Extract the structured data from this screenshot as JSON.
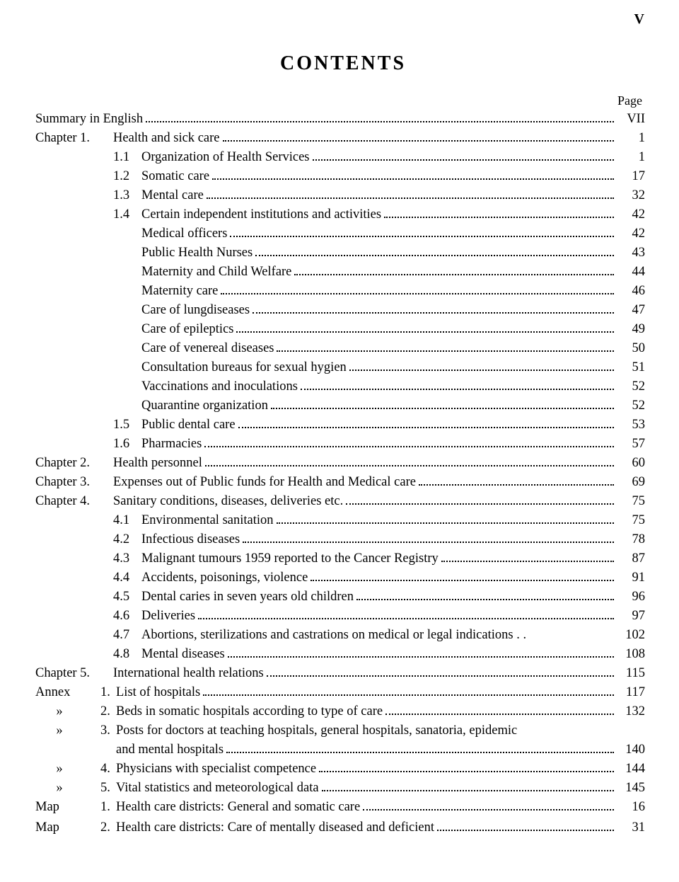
{
  "page_number_top": "V",
  "title": "CONTENTS",
  "page_heading": "Page",
  "rows": [
    {
      "type": "row",
      "prefix": "",
      "prefix_cls": "",
      "indent": "indent-0",
      "label": "Summary in English",
      "page": "VII",
      "dots": true
    },
    {
      "type": "row",
      "prefix": "Chapter 1.",
      "prefix_cls": "pfx-chapter",
      "indent": "indent-0",
      "label": "Health and sick care",
      "page": "1",
      "dots": true
    },
    {
      "type": "row",
      "prefix": "1.1",
      "prefix_cls": "pfx-num",
      "indent": "indent-1",
      "label": "Organization of Health Services",
      "page": "1",
      "dots": true
    },
    {
      "type": "row",
      "prefix": "1.2",
      "prefix_cls": "pfx-num",
      "indent": "indent-1",
      "label": "Somatic care",
      "page": "17",
      "dots": true
    },
    {
      "type": "row",
      "prefix": "1.3",
      "prefix_cls": "pfx-num",
      "indent": "indent-1",
      "label": "Mental care",
      "page": "32",
      "dots": true
    },
    {
      "type": "row",
      "prefix": "1.4",
      "prefix_cls": "pfx-num",
      "indent": "indent-1",
      "label": "Certain independent institutions and activities",
      "page": "42",
      "dots": true
    },
    {
      "type": "row",
      "prefix": "",
      "prefix_cls": "",
      "indent": "indent-2",
      "label": "Medical officers",
      "page": "42",
      "dots": true
    },
    {
      "type": "row",
      "prefix": "",
      "prefix_cls": "",
      "indent": "indent-2",
      "label": "Public Health Nurses",
      "page": "43",
      "dots": true
    },
    {
      "type": "row",
      "prefix": "",
      "prefix_cls": "",
      "indent": "indent-2",
      "label": "Maternity and Child Welfare",
      "page": "44",
      "dots": true
    },
    {
      "type": "row",
      "prefix": "",
      "prefix_cls": "",
      "indent": "indent-2",
      "label": "Maternity care",
      "page": "46",
      "dots": true
    },
    {
      "type": "row",
      "prefix": "",
      "prefix_cls": "",
      "indent": "indent-2",
      "label": "Care of lungdiseases",
      "page": "47",
      "dots": true
    },
    {
      "type": "row",
      "prefix": "",
      "prefix_cls": "",
      "indent": "indent-2",
      "label": "Care of epileptics",
      "page": "49",
      "dots": true
    },
    {
      "type": "row",
      "prefix": "",
      "prefix_cls": "",
      "indent": "indent-2",
      "label": "Care of venereal diseases",
      "page": "50",
      "dots": true
    },
    {
      "type": "row",
      "prefix": "",
      "prefix_cls": "",
      "indent": "indent-2",
      "label": "Consultation bureaus for sexual hygien",
      "page": "51",
      "dots": true
    },
    {
      "type": "row",
      "prefix": "",
      "prefix_cls": "",
      "indent": "indent-2",
      "label": "Vaccinations and inoculations",
      "page": "52",
      "dots": true
    },
    {
      "type": "row",
      "prefix": "",
      "prefix_cls": "",
      "indent": "indent-2",
      "label": "Quarantine organization",
      "page": "52",
      "dots": true
    },
    {
      "type": "row",
      "prefix": "1.5",
      "prefix_cls": "pfx-num",
      "indent": "indent-1",
      "label": "Public dental care",
      "page": "53",
      "dots": true
    },
    {
      "type": "row",
      "prefix": "1.6",
      "prefix_cls": "pfx-num",
      "indent": "indent-1",
      "label": "Pharmacies",
      "page": "57",
      "dots": true
    },
    {
      "type": "row",
      "prefix": "Chapter 2.",
      "prefix_cls": "pfx-chapter",
      "indent": "indent-0",
      "label": "Health personnel",
      "page": "60",
      "dots": true
    },
    {
      "type": "row",
      "prefix": "Chapter 3.",
      "prefix_cls": "pfx-chapter",
      "indent": "indent-0",
      "label": "Expenses out of Public funds for Health and Medical care",
      "page": "69",
      "dots": true
    },
    {
      "type": "row",
      "prefix": "Chapter 4.",
      "prefix_cls": "pfx-chapter",
      "indent": "indent-0",
      "label": "Sanitary conditions, diseases, deliveries etc.",
      "page": "75",
      "dots": true
    },
    {
      "type": "row",
      "prefix": "4.1",
      "prefix_cls": "pfx-num",
      "indent": "indent-1",
      "label": "Environmental sanitation",
      "page": "75",
      "dots": true
    },
    {
      "type": "row",
      "prefix": "4.2",
      "prefix_cls": "pfx-num",
      "indent": "indent-1",
      "label": "Infectious diseases",
      "page": "78",
      "dots": true
    },
    {
      "type": "row",
      "prefix": "4.3",
      "prefix_cls": "pfx-num",
      "indent": "indent-1",
      "label": "Malignant tumours 1959 reported to the Cancer Registry",
      "page": "87",
      "dots": true
    },
    {
      "type": "row",
      "prefix": "4.4",
      "prefix_cls": "pfx-num",
      "indent": "indent-1",
      "label": "Accidents, poisonings, violence",
      "page": "91",
      "dots": true
    },
    {
      "type": "row",
      "prefix": "4.5",
      "prefix_cls": "pfx-num",
      "indent": "indent-1",
      "label": "Dental caries in seven years old children",
      "page": "96",
      "dots": true
    },
    {
      "type": "row",
      "prefix": "4.6",
      "prefix_cls": "pfx-num",
      "indent": "indent-1",
      "label": "Deliveries",
      "page": "97",
      "dots": true
    },
    {
      "type": "row",
      "prefix": "4.7",
      "prefix_cls": "pfx-num",
      "indent": "indent-1",
      "label": "Abortions, sterilizations and castrations on medical or legal indications . .",
      "page": "102",
      "dots": false
    },
    {
      "type": "row",
      "prefix": "4.8",
      "prefix_cls": "pfx-num",
      "indent": "indent-1",
      "label": "Mental diseases",
      "page": "108",
      "dots": true
    },
    {
      "type": "row",
      "prefix": "Chapter 5.",
      "prefix_cls": "pfx-chapter",
      "indent": "indent-0",
      "label": "International health relations",
      "page": "115",
      "dots": true
    },
    {
      "type": "annex",
      "prefix": "Annex",
      "num": "1.",
      "label": "List of hospitals",
      "page": "117",
      "dots": true
    },
    {
      "type": "annex",
      "prefix": "»",
      "ditto": true,
      "num": "2.",
      "label": "Beds in somatic hospitals according to type of care",
      "page": "132",
      "dots": true
    },
    {
      "type": "annex-wrap",
      "prefix": "»",
      "ditto": true,
      "num": "3.",
      "label": "Posts for doctors at teaching hospitals, general hospitals, sanatoria, epidemic",
      "cont": "and mental hospitals",
      "page": "140",
      "dots": true
    },
    {
      "type": "annex",
      "prefix": "»",
      "ditto": true,
      "num": "4.",
      "label": "Physicians with specialist competence",
      "page": "144",
      "dots": true
    },
    {
      "type": "annex",
      "prefix": "»",
      "ditto": true,
      "num": "5.",
      "label": "Vital statistics and meteorological data",
      "page": "145",
      "dots": true
    },
    {
      "type": "map",
      "prefix": "Map",
      "num": "1.",
      "label": "Health care districts: General and somatic care",
      "page": "16",
      "dots": true
    },
    {
      "type": "map",
      "prefix": "Map",
      "num": "2.",
      "label": "Health care districts: Care of mentally diseased and deficient",
      "page": "31",
      "dots": true
    }
  ]
}
